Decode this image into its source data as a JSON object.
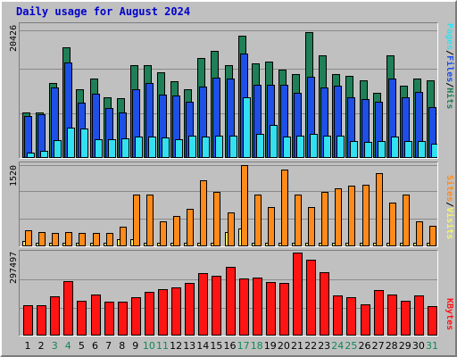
{
  "title": "Daily usage for August 2024",
  "colors": {
    "hits": "#1f7f56",
    "files": "#1e4fe6",
    "pages": "#33e0f0",
    "visits": "#f5f566",
    "sites": "#ff8a1a",
    "kbytes": "#ff1414",
    "weekday_label": "#000000",
    "weekend_label": "#118855"
  },
  "chart_data": [
    {
      "type": "bar",
      "ylabel": "20426",
      "legend": [
        "Pages",
        "Files",
        "Hits"
      ],
      "legend_separator": "/",
      "ymax_label": 20426,
      "ylim": [
        0,
        20426
      ],
      "categories": [
        "1",
        "2",
        "3",
        "4",
        "5",
        "6",
        "7",
        "8",
        "9",
        "10",
        "11",
        "12",
        "13",
        "14",
        "15",
        "16",
        "17",
        "18",
        "19",
        "20",
        "21",
        "22",
        "23",
        "24",
        "25",
        "26",
        "27",
        "28",
        "29",
        "30",
        "31"
      ],
      "weekend_days": [
        "3",
        "4",
        "10",
        "11",
        "17",
        "18",
        "24",
        "25",
        "31"
      ],
      "series": [
        {
          "name": "Hits",
          "values": [
            7200,
            7200,
            11900,
            17600,
            11000,
            12600,
            9700,
            9500,
            14800,
            14800,
            13600,
            12200,
            11000,
            15900,
            17100,
            14800,
            19400,
            15000,
            15400,
            14100,
            13300,
            20000,
            16300,
            13400,
            13000,
            12300,
            10400,
            16300,
            11500,
            12700,
            12300
          ]
        },
        {
          "name": "Files",
          "values": [
            6700,
            6900,
            11200,
            15200,
            8800,
            10200,
            7900,
            7200,
            11000,
            11900,
            10100,
            9900,
            8900,
            11400,
            12800,
            12600,
            16600,
            11600,
            11700,
            11700,
            10400,
            12900,
            11200,
            11500,
            9600,
            9400,
            8900,
            12700,
            9700,
            10500,
            8100
          ]
        },
        {
          "name": "Pages",
          "values": [
            900,
            1200,
            2900,
            4800,
            4700,
            3000,
            3000,
            3100,
            3400,
            3400,
            3300,
            3000,
            3600,
            3400,
            3600,
            3600,
            9600,
            3900,
            5300,
            3400,
            3600,
            3800,
            3600,
            3600,
            2700,
            2600,
            2700,
            3400,
            2700,
            2700,
            2300
          ]
        }
      ]
    },
    {
      "type": "bar",
      "ylabel": "1520",
      "legend": [
        "Sites",
        "Visits"
      ],
      "legend_separator": "/",
      "ymax_label": 1520,
      "ylim": [
        0,
        1520
      ],
      "categories": [
        "1",
        "2",
        "3",
        "4",
        "5",
        "6",
        "7",
        "8",
        "9",
        "10",
        "11",
        "12",
        "13",
        "14",
        "15",
        "16",
        "17",
        "18",
        "19",
        "20",
        "21",
        "22",
        "23",
        "24",
        "25",
        "26",
        "27",
        "28",
        "29",
        "30",
        "31"
      ],
      "series": [
        {
          "name": "Visits",
          "values": [
            100,
            60,
            60,
            60,
            60,
            60,
            60,
            140,
            140,
            60,
            60,
            60,
            60,
            60,
            60,
            260,
            330,
            60,
            60,
            60,
            60,
            60,
            60,
            60,
            60,
            60,
            60,
            60,
            60,
            60,
            60
          ]
        },
        {
          "name": "Sites",
          "values": [
            300,
            260,
            250,
            260,
            250,
            250,
            250,
            370,
            960,
            960,
            460,
            560,
            700,
            1240,
            1010,
            640,
            1520,
            960,
            740,
            1440,
            960,
            730,
            1020,
            1080,
            1130,
            1150,
            1360,
            820,
            960,
            460,
            380
          ]
        }
      ]
    },
    {
      "type": "bar",
      "ylabel": "297497",
      "legend": [
        "KBytes"
      ],
      "ymax_label": 297497,
      "ylim": [
        0,
        297497
      ],
      "categories": [
        "1",
        "2",
        "3",
        "4",
        "5",
        "6",
        "7",
        "8",
        "9",
        "10",
        "11",
        "12",
        "13",
        "14",
        "15",
        "16",
        "17",
        "18",
        "19",
        "20",
        "21",
        "22",
        "23",
        "24",
        "25",
        "26",
        "27",
        "28",
        "29",
        "30",
        "31"
      ],
      "series": [
        {
          "name": "KBytes",
          "values": [
            108000,
            108000,
            140000,
            196000,
            123000,
            146000,
            120000,
            122000,
            137000,
            157000,
            165000,
            174000,
            187000,
            225000,
            215000,
            245000,
            203000,
            207000,
            192000,
            189000,
            297000,
            272000,
            226000,
            145000,
            136000,
            111000,
            162000,
            146000,
            124000,
            143000,
            105000
          ]
        }
      ]
    }
  ]
}
